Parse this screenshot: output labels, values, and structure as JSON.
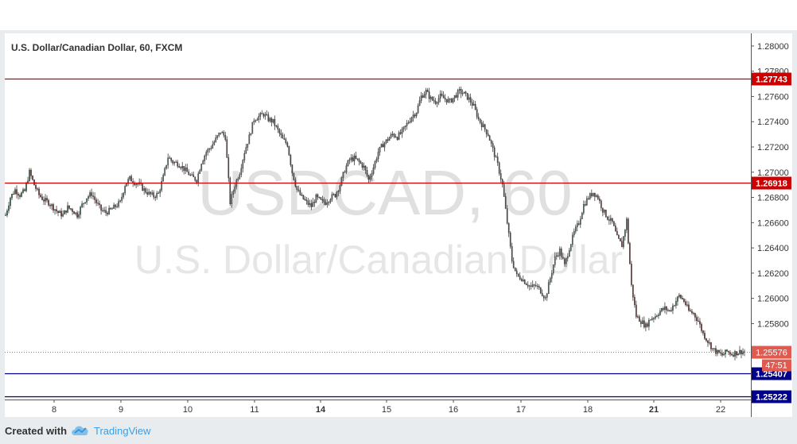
{
  "chart_data": {
    "type": "candlestick",
    "title": "U.S. Dollar/Canadian Dollar, 60, FXCM",
    "watermark_symbol": "USDCAD, 60",
    "watermark_name": "U.S. Dollar/Canadian Dollar",
    "ylim": [
      1.2506,
      1.281
    ],
    "y_ticks": [
      "1.28000",
      "1.27800",
      "1.27600",
      "1.27400",
      "1.27200",
      "1.27000",
      "1.26800",
      "1.26600",
      "1.26400",
      "1.26200",
      "1.26000",
      "1.25800"
    ],
    "x_ticks": [
      "8",
      "9",
      "10",
      "11",
      "14",
      "15",
      "16",
      "17",
      "18",
      "21",
      "22"
    ],
    "levels": [
      {
        "value": 1.27743,
        "label": "1.27743",
        "color": "#cc0000",
        "kind": "resistance"
      },
      {
        "value": 1.26918,
        "label": "1.26918",
        "color": "#cc0000",
        "kind": "resistance"
      },
      {
        "value": 1.25407,
        "label": "1.25407",
        "color": "#00008b",
        "kind": "support"
      },
      {
        "value": 1.25222,
        "label": "1.25222",
        "color": "#00008b",
        "kind": "support"
      }
    ],
    "last_price": {
      "value": 1.25576,
      "label": "1.25576",
      "countdown": "47:51",
      "color": "#e05a4f"
    },
    "grid": false,
    "close_path": [
      [
        0,
        1.2666
      ],
      [
        3,
        1.268
      ],
      [
        6,
        1.2686
      ],
      [
        9,
        1.2682
      ],
      [
        12,
        1.2685
      ],
      [
        15,
        1.27
      ],
      [
        18,
        1.269
      ],
      [
        21,
        1.2682
      ],
      [
        24,
        1.2678
      ],
      [
        27,
        1.2676
      ],
      [
        30,
        1.2672
      ],
      [
        33,
        1.2668
      ],
      [
        36,
        1.2666
      ],
      [
        39,
        1.2672
      ],
      [
        42,
        1.267
      ],
      [
        45,
        1.2666
      ],
      [
        48,
        1.2674
      ],
      [
        51,
        1.268
      ],
      [
        54,
        1.2683
      ],
      [
        57,
        1.2676
      ],
      [
        60,
        1.267
      ],
      [
        63,
        1.2668
      ],
      [
        66,
        1.267
      ],
      [
        69,
        1.2673
      ],
      [
        72,
        1.2676
      ],
      [
        75,
        1.269
      ],
      [
        78,
        1.2695
      ],
      [
        81,
        1.2692
      ],
      [
        84,
        1.269
      ],
      [
        87,
        1.2686
      ],
      [
        90,
        1.2683
      ],
      [
        93,
        1.2681
      ],
      [
        96,
        1.2683
      ],
      [
        99,
        1.2696
      ],
      [
        102,
        1.2712
      ],
      [
        105,
        1.2708
      ],
      [
        108,
        1.2707
      ],
      [
        111,
        1.2704
      ],
      [
        114,
        1.27
      ],
      [
        117,
        1.2696
      ],
      [
        120,
        1.2694
      ],
      [
        123,
        1.2708
      ],
      [
        126,
        1.2716
      ],
      [
        129,
        1.272
      ],
      [
        132,
        1.2726
      ],
      [
        135,
        1.2732
      ],
      [
        138,
        1.2728
      ],
      [
        141,
        1.2676
      ],
      [
        144,
        1.269
      ],
      [
        147,
        1.27
      ],
      [
        150,
        1.2716
      ],
      [
        153,
        1.2728
      ],
      [
        156,
        1.2742
      ],
      [
        159,
        1.2744
      ],
      [
        162,
        1.2746
      ],
      [
        165,
        1.2742
      ],
      [
        168,
        1.274
      ],
      [
        171,
        1.2733
      ],
      [
        174,
        1.2726
      ],
      [
        177,
        1.2722
      ],
      [
        180,
        1.27
      ],
      [
        183,
        1.2686
      ],
      [
        186,
        1.268
      ],
      [
        189,
        1.2676
      ],
      [
        192,
        1.2673
      ],
      [
        195,
        1.268
      ],
      [
        198,
        1.2677
      ],
      [
        201,
        1.2676
      ],
      [
        204,
        1.268
      ],
      [
        207,
        1.2682
      ],
      [
        210,
        1.269
      ],
      [
        213,
        1.2702
      ],
      [
        216,
        1.271
      ],
      [
        219,
        1.2711
      ],
      [
        222,
        1.2708
      ],
      [
        225,
        1.2704
      ],
      [
        228,
        1.2694
      ],
      [
        231,
        1.2704
      ],
      [
        234,
        1.2716
      ],
      [
        237,
        1.2722
      ],
      [
        240,
        1.2726
      ],
      [
        243,
        1.273
      ],
      [
        246,
        1.2728
      ],
      [
        249,
        1.2732
      ],
      [
        252,
        1.2738
      ],
      [
        255,
        1.2744
      ],
      [
        258,
        1.2748
      ],
      [
        261,
        1.276
      ],
      [
        264,
        1.2764
      ],
      [
        267,
        1.2758
      ],
      [
        270,
        1.2756
      ],
      [
        273,
        1.276
      ],
      [
        276,
        1.2758
      ],
      [
        279,
        1.2756
      ],
      [
        282,
        1.276
      ],
      [
        285,
        1.2764
      ],
      [
        288,
        1.2762
      ],
      [
        291,
        1.2758
      ],
      [
        294,
        1.2752
      ],
      [
        297,
        1.2742
      ],
      [
        300,
        1.2736
      ],
      [
        303,
        1.273
      ],
      [
        306,
        1.2718
      ],
      [
        309,
        1.2706
      ],
      [
        312,
        1.269
      ],
      [
        315,
        1.266
      ],
      [
        318,
        1.263
      ],
      [
        321,
        1.2618
      ],
      [
        324,
        1.2616
      ],
      [
        327,
        1.2612
      ],
      [
        330,
        1.2609
      ],
      [
        333,
        1.261
      ],
      [
        336,
        1.2606
      ],
      [
        339,
        1.26
      ],
      [
        342,
        1.2616
      ],
      [
        345,
        1.2632
      ],
      [
        348,
        1.2638
      ],
      [
        351,
        1.2626
      ],
      [
        354,
        1.264
      ],
      [
        357,
        1.2652
      ],
      [
        360,
        1.266
      ],
      [
        363,
        1.2674
      ],
      [
        366,
        1.268
      ],
      [
        369,
        1.2684
      ],
      [
        372,
        1.268
      ],
      [
        375,
        1.267
      ],
      [
        378,
        1.2664
      ],
      [
        381,
        1.266
      ],
      [
        384,
        1.2648
      ],
      [
        387,
        1.2642
      ],
      [
        390,
        1.2662
      ],
      [
        393,
        1.261
      ],
      [
        396,
        1.2586
      ],
      [
        399,
        1.2582
      ],
      [
        402,
        1.2578
      ],
      [
        405,
        1.2584
      ],
      [
        408,
        1.2586
      ],
      [
        411,
        1.259
      ],
      [
        414,
        1.2592
      ],
      [
        417,
        1.259
      ],
      [
        420,
        1.2596
      ],
      [
        423,
        1.2602
      ],
      [
        426,
        1.2598
      ],
      [
        429,
        1.259
      ],
      [
        432,
        1.2588
      ],
      [
        435,
        1.2582
      ],
      [
        438,
        1.2572
      ],
      [
        441,
        1.2566
      ],
      [
        444,
        1.256
      ],
      [
        447,
        1.2557
      ],
      [
        450,
        1.2555
      ],
      [
        453,
        1.2558
      ],
      [
        456,
        1.2556
      ],
      [
        459,
        1.2557
      ],
      [
        462,
        1.2558
      ],
      [
        464,
        1.25576
      ]
    ]
  }
}
